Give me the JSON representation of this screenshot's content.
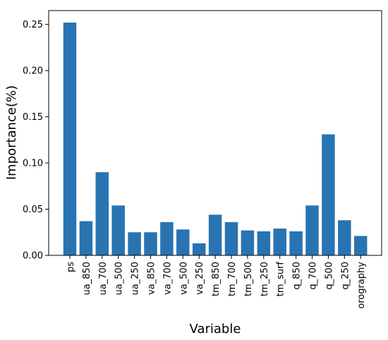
{
  "chart_data": {
    "type": "bar",
    "title": "",
    "xlabel": "Variable",
    "ylabel": "Importance(%)",
    "ylim": [
      0,
      0.265
    ],
    "yticks": [
      "0.00",
      "0.05",
      "0.10",
      "0.15",
      "0.20",
      "0.25"
    ],
    "grid": false,
    "legend": "none",
    "bar_color": "#2874b2",
    "categories": [
      "ps",
      "ua_850",
      "ua_700",
      "ua_500",
      "ua_250",
      "va_850",
      "va_700",
      "va_500",
      "va_250",
      "tm_850",
      "tm_700",
      "tm_500",
      "tm_250",
      "tm_surf",
      "q_850",
      "q_700",
      "q_500",
      "q_250",
      "orography"
    ],
    "values": [
      0.252,
      0.037,
      0.09,
      0.054,
      0.025,
      0.025,
      0.036,
      0.028,
      0.013,
      0.044,
      0.036,
      0.027,
      0.026,
      0.029,
      0.026,
      0.054,
      0.131,
      0.038,
      0.021
    ]
  }
}
